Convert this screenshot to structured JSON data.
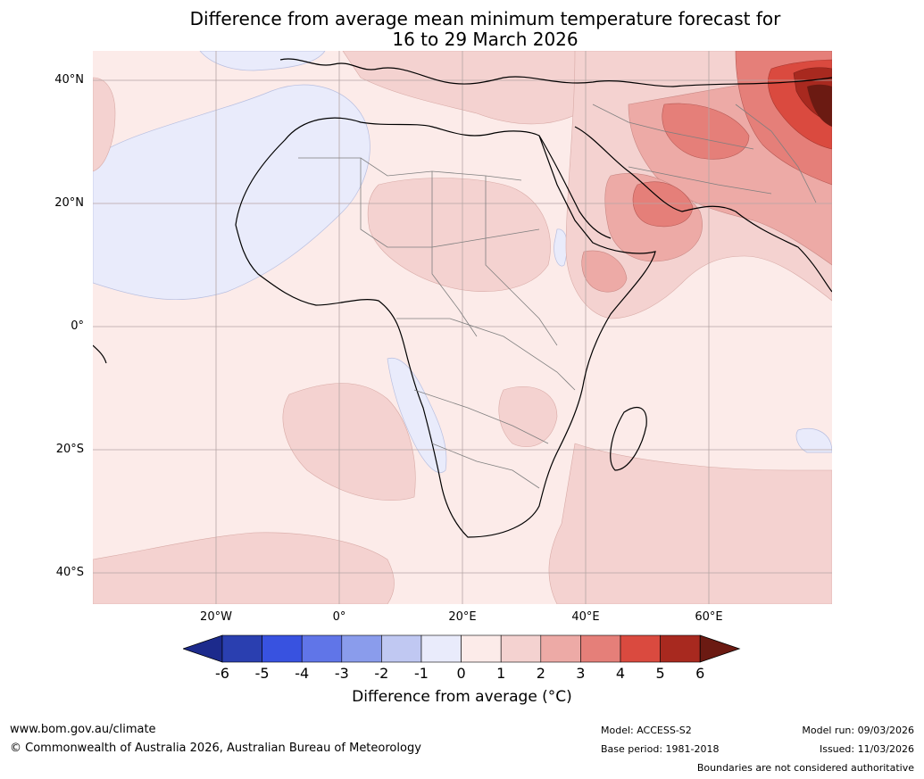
{
  "title": {
    "line1": "Difference from average mean minimum temperature forecast for",
    "line2": "16 to 29 March 2026"
  },
  "map": {
    "region": "Africa and Middle East",
    "lat_labels": [
      "40°N",
      "20°N",
      "0°",
      "20°S",
      "40°S"
    ],
    "lon_labels": [
      "20°W",
      "0°",
      "20°E",
      "40°E",
      "60°E"
    ]
  },
  "colorbar": {
    "ticks": [
      "-6",
      "-5",
      "-4",
      "-3",
      "-2",
      "-1",
      "0",
      "1",
      "2",
      "3",
      "4",
      "5",
      "6"
    ],
    "colors": [
      "#1c2a8c",
      "#2a3fb0",
      "#3852e0",
      "#6075e8",
      "#8a9cec",
      "#c0c8f2",
      "#e9ebfb",
      "#fcebe9",
      "#f4d2d0",
      "#edaaa6",
      "#e57f79",
      "#da4a3f",
      "#a8291f",
      "#6b1a12"
    ],
    "label": "Difference from average (°C)"
  },
  "footer": {
    "website": "www.bom.gov.au/climate",
    "copyright": "© Commonwealth of Australia 2026, Australian Bureau of Meteorology",
    "model": "Model: ACCESS-S2",
    "base_period": "Base period: 1981-2018",
    "model_run": "Model run: 09/03/2026",
    "issued": "Issued: 11/03/2026",
    "disclaimer": "Boundaries are not considered authoritative"
  }
}
